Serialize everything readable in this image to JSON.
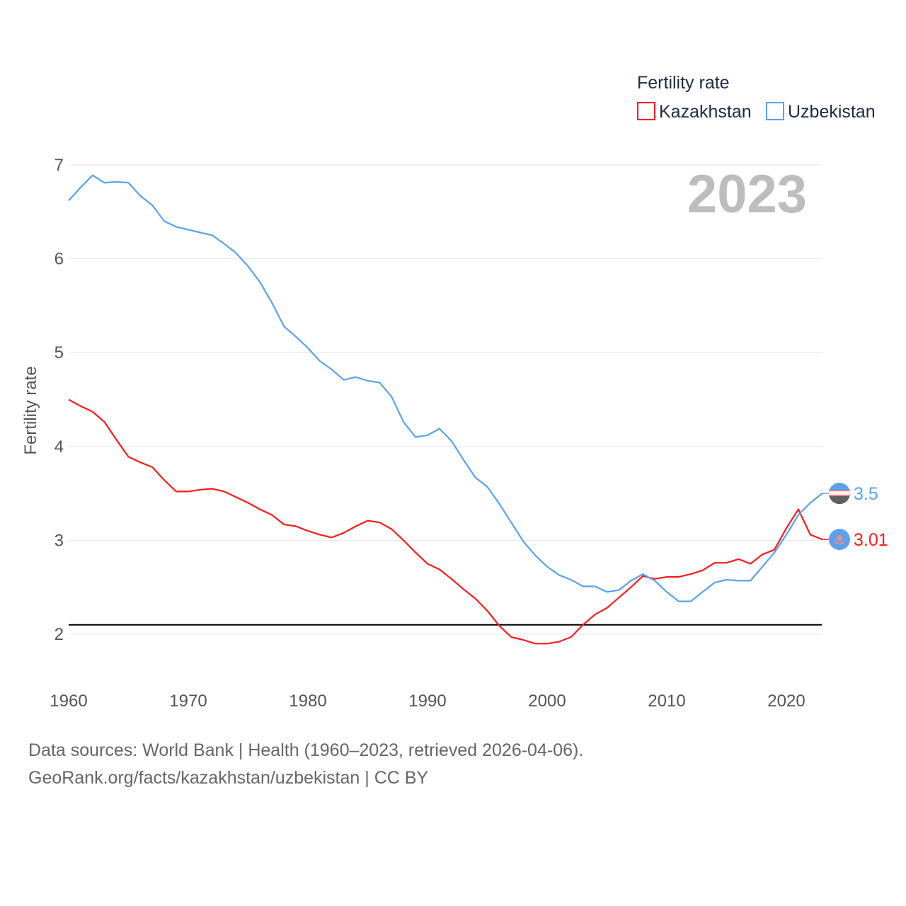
{
  "chart_data": {
    "type": "line",
    "title": "",
    "ylabel": "Fertility rate",
    "xlabel": "",
    "xlim": [
      1960,
      2023
    ],
    "ylim": [
      1.5,
      7
    ],
    "xticks": [
      "1960",
      "1970",
      "1980",
      "1990",
      "2000",
      "2010",
      "2020"
    ],
    "yticks": [
      "2",
      "3",
      "4",
      "5",
      "6",
      "7"
    ],
    "year_label": "2023",
    "legend": {
      "title": "Fertility rate",
      "placement": "top-right"
    },
    "reference_line": 2.1,
    "x_start": 1960,
    "series": [
      {
        "name": "Kazakhstan",
        "color": "#ff1a1a",
        "end_label": "3.01",
        "values": [
          4.5,
          4.43,
          4.37,
          4.26,
          4.07,
          3.89,
          3.83,
          3.78,
          3.64,
          3.52,
          3.52,
          3.54,
          3.55,
          3.52,
          3.46,
          3.4,
          3.33,
          3.27,
          3.17,
          3.15,
          3.1,
          3.06,
          3.03,
          3.08,
          3.15,
          3.21,
          3.19,
          3.12,
          3.0,
          2.87,
          2.75,
          2.69,
          2.59,
          2.48,
          2.38,
          2.25,
          2.09,
          1.97,
          1.94,
          1.9,
          1.9,
          1.92,
          1.97,
          2.1,
          2.21,
          2.28,
          2.39,
          2.5,
          2.62,
          2.59,
          2.61,
          2.61,
          2.64,
          2.68,
          2.76,
          2.76,
          2.8,
          2.75,
          2.85,
          2.9,
          3.13,
          3.33,
          3.06,
          3.01
        ]
      },
      {
        "name": "Uzbekistan",
        "color": "#5aa2ee",
        "end_label": "3.5",
        "values": [
          6.62,
          6.76,
          6.89,
          6.81,
          6.82,
          6.81,
          6.67,
          6.57,
          6.4,
          6.34,
          6.31,
          6.28,
          6.25,
          6.16,
          6.06,
          5.92,
          5.75,
          5.53,
          5.28,
          5.17,
          5.05,
          4.91,
          4.82,
          4.71,
          4.74,
          4.7,
          4.68,
          4.53,
          4.26,
          4.1,
          4.12,
          4.19,
          4.06,
          3.86,
          3.67,
          3.57,
          3.39,
          3.19,
          2.99,
          2.84,
          2.72,
          2.63,
          2.58,
          2.51,
          2.51,
          2.45,
          2.47,
          2.57,
          2.64,
          2.57,
          2.45,
          2.35,
          2.35,
          2.45,
          2.55,
          2.58,
          2.57,
          2.57,
          2.72,
          2.87,
          3.06,
          3.27,
          3.4,
          3.5
        ]
      }
    ]
  },
  "footer": {
    "line1": "Data sources: World Bank | Health (1960–2023, retrieved 2026-04-06).",
    "line2": "GeoRank.org/facts/kazakhstan/uzbekistan | CC BY"
  }
}
